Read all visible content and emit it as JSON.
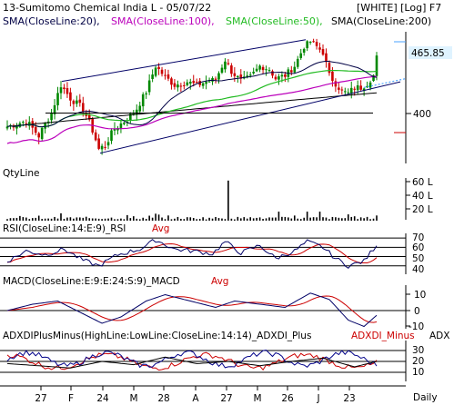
{
  "header": {
    "title": "13-Sumitomo Chemical India L - 05/07/22",
    "mode": "[WHITE] [Log] F7"
  },
  "colors": {
    "price_up": "#008800",
    "price_down": "#cc0000",
    "sma20": "#000044",
    "sma100": "#bb00bb",
    "sma50": "#22bb22",
    "sma200": "#000000",
    "channel": "#000066",
    "rsi": "#000066",
    "rsi_avg": "#cc0000",
    "macd": "#000066",
    "macd_signal": "#cc0000",
    "adx": "#000000",
    "di_plus": "#000088",
    "di_minus": "#cc0000",
    "price_tag_bg": "#dff3ff"
  },
  "price_panel": {
    "legend": [
      {
        "id": "sma20",
        "label": "SMA(CloseLine:20),"
      },
      {
        "id": "sma100",
        "label": "SMA(CloseLine:100),"
      },
      {
        "id": "sma50",
        "label": "SMA(CloseLine:50),"
      },
      {
        "id": "sma200",
        "label": "SMA(CloseLine:200)"
      }
    ],
    "price_tag": "465.85",
    "level_label": "400"
  },
  "volume_panel": {
    "title": "QtyLine",
    "ticks": [
      "60 L",
      "40 L",
      "20 L"
    ]
  },
  "rsi_panel": {
    "title": "RSI(CloseLine:14:E:9)_RSI",
    "avg_label": "Avg",
    "ticks": [
      "70",
      "60",
      "50",
      "40"
    ]
  },
  "macd_panel": {
    "title": "MACD(CloseLine:E:9:E:24:S:9)_MACD",
    "avg_label": "Avg",
    "ticks": [
      "10",
      "0",
      "-10"
    ]
  },
  "adx_panel": {
    "title": "ADXDIPlusMinus(HighLine:LowLine:CloseLine:14:14)_ADXDI_Plus",
    "minus_label": "ADXDI_Minus",
    "adx_label": "ADX",
    "ticks": [
      "30",
      "20",
      "10"
    ]
  },
  "x_axis": {
    "labels": [
      "27",
      "F",
      "24",
      "M",
      "28",
      "A",
      "27",
      "M",
      "26",
      "J",
      "23"
    ],
    "period": "Daily"
  },
  "chart_data": {
    "type": "candlestick",
    "title": "13-Sumitomo Chemical India L - 05/07/22",
    "scale": "log",
    "x_tick_labels": [
      "27",
      "F",
      "24",
      "M",
      "28",
      "A",
      "27",
      "M",
      "26",
      "J",
      "23"
    ],
    "close_waypoints": [
      {
        "session": 0,
        "close": 380
      },
      {
        "session": 6,
        "close": 386
      },
      {
        "session": 10,
        "close": 370
      },
      {
        "session": 14,
        "close": 395
      },
      {
        "session": 17,
        "close": 428
      },
      {
        "session": 20,
        "close": 412
      },
      {
        "session": 24,
        "close": 400
      },
      {
        "session": 27,
        "close": 376
      },
      {
        "session": 29,
        "close": 356
      },
      {
        "session": 31,
        "close": 360
      },
      {
        "session": 34,
        "close": 378
      },
      {
        "session": 38,
        "close": 388
      },
      {
        "session": 41,
        "close": 400
      },
      {
        "session": 44,
        "close": 420
      },
      {
        "session": 47,
        "close": 452
      },
      {
        "session": 50,
        "close": 438
      },
      {
        "session": 53,
        "close": 428
      },
      {
        "session": 57,
        "close": 432
      },
      {
        "session": 60,
        "close": 428
      },
      {
        "session": 63,
        "close": 432
      },
      {
        "session": 66,
        "close": 435
      },
      {
        "session": 69,
        "close": 460
      },
      {
        "session": 71,
        "close": 445
      },
      {
        "session": 74,
        "close": 433
      },
      {
        "session": 77,
        "close": 438
      },
      {
        "session": 80,
        "close": 452
      },
      {
        "session": 83,
        "close": 448
      },
      {
        "session": 85,
        "close": 436
      },
      {
        "session": 88,
        "close": 440
      },
      {
        "session": 91,
        "close": 452
      },
      {
        "session": 94,
        "close": 478
      },
      {
        "session": 96,
        "close": 485
      },
      {
        "session": 98,
        "close": 478
      },
      {
        "session": 100,
        "close": 470
      },
      {
        "session": 102,
        "close": 440
      },
      {
        "session": 104,
        "close": 430
      },
      {
        "session": 106,
        "close": 420
      },
      {
        "session": 108,
        "close": 418
      },
      {
        "session": 110,
        "close": 425
      },
      {
        "session": 112,
        "close": 425
      },
      {
        "session": 114,
        "close": 430
      },
      {
        "session": 116,
        "close": 440
      },
      {
        "session": 117,
        "close": 466
      }
    ],
    "series": [
      {
        "name": "SMA(CloseLine:20)"
      },
      {
        "name": "SMA(CloseLine:100)"
      },
      {
        "name": "SMA(CloseLine:50)"
      },
      {
        "name": "SMA(CloseLine:200)"
      }
    ],
    "last_close": 465.85,
    "reference_level": 400,
    "volume_ticks_lakh": [
      20,
      40,
      60
    ],
    "rsi": {
      "guides": [
        70,
        60,
        50,
        40
      ],
      "waypoints": [
        {
          "session": 0,
          "value": 45
        },
        {
          "session": 6,
          "value": 56
        },
        {
          "session": 12,
          "value": 52
        },
        {
          "session": 18,
          "value": 58
        },
        {
          "session": 24,
          "value": 46
        },
        {
          "session": 29,
          "value": 40
        },
        {
          "session": 35,
          "value": 52
        },
        {
          "session": 42,
          "value": 58
        },
        {
          "session": 47,
          "value": 68
        },
        {
          "session": 53,
          "value": 58
        },
        {
          "session": 59,
          "value": 56
        },
        {
          "session": 65,
          "value": 53
        },
        {
          "session": 69,
          "value": 66
        },
        {
          "session": 74,
          "value": 54
        },
        {
          "session": 80,
          "value": 62
        },
        {
          "session": 85,
          "value": 48
        },
        {
          "session": 91,
          "value": 56
        },
        {
          "session": 95,
          "value": 66
        },
        {
          "session": 100,
          "value": 60
        },
        {
          "session": 104,
          "value": 48
        },
        {
          "session": 108,
          "value": 40
        },
        {
          "session": 113,
          "value": 45
        },
        {
          "session": 117,
          "value": 63
        }
      ]
    },
    "macd": {
      "zero_line": 0,
      "waypoints": [
        {
          "session": 0,
          "value": 0
        },
        {
          "session": 8,
          "value": 4
        },
        {
          "session": 16,
          "value": 6
        },
        {
          "session": 24,
          "value": -2
        },
        {
          "session": 30,
          "value": -8
        },
        {
          "session": 36,
          "value": -4
        },
        {
          "session": 44,
          "value": 6
        },
        {
          "session": 50,
          "value": 10
        },
        {
          "session": 58,
          "value": 6
        },
        {
          "session": 66,
          "value": 2
        },
        {
          "session": 72,
          "value": 6
        },
        {
          "session": 80,
          "value": 4
        },
        {
          "session": 88,
          "value": 2
        },
        {
          "session": 96,
          "value": 11
        },
        {
          "session": 102,
          "value": 7
        },
        {
          "session": 108,
          "value": -6
        },
        {
          "session": 113,
          "value": -10
        },
        {
          "session": 117,
          "value": -3
        }
      ]
    },
    "adx": {
      "guides": [
        30,
        20,
        10
      ],
      "waypoints": [
        {
          "session": 0,
          "value": 18
        },
        {
          "session": 10,
          "value": 16
        },
        {
          "session": 20,
          "value": 14
        },
        {
          "session": 30,
          "value": 20
        },
        {
          "session": 40,
          "value": 17
        },
        {
          "session": 50,
          "value": 24
        },
        {
          "session": 60,
          "value": 18
        },
        {
          "session": 70,
          "value": 20
        },
        {
          "session": 80,
          "value": 16
        },
        {
          "session": 90,
          "value": 20
        },
        {
          "session": 100,
          "value": 23
        },
        {
          "session": 110,
          "value": 15
        },
        {
          "session": 117,
          "value": 20
        }
      ]
    }
  }
}
